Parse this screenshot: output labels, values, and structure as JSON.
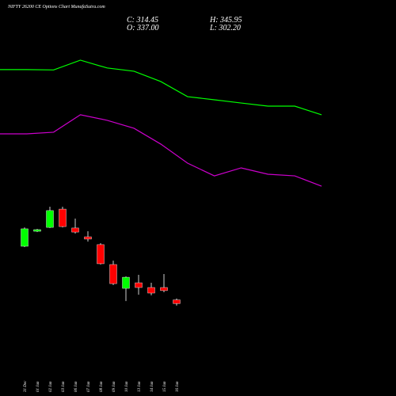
{
  "chart_data": {
    "type": "candlestick",
    "title": "NIFTY 26200  CE Options Chart MunafaSutra.com",
    "ohlc_labels": [
      "C: 314.45",
      "H: 345.95",
      "O: 337.00",
      "L: 302.20"
    ],
    "categories": [
      "31 Dec",
      "01 Jan",
      "02 Jan",
      "03 Jan",
      "06 Jan",
      "07 Jan",
      "08 Jan",
      "09 Jan",
      "10 Jan",
      "13 Jan",
      "14 Jan",
      "15 Jan",
      "16 Jan"
    ],
    "open": [
      666,
      758,
      782,
      894,
      778,
      724,
      676,
      554,
      408,
      442,
      413,
      413,
      337.0
    ],
    "high": [
      782,
      773,
      909,
      909,
      836,
      758,
      685,
      578,
      481,
      491,
      442,
      496,
      345.95
    ],
    "low": [
      661,
      753,
      778,
      782,
      744,
      695,
      554,
      428,
      330,
      369,
      365,
      384,
      302.2
    ],
    "close": [
      773,
      768,
      885,
      787,
      753,
      710,
      559,
      437,
      476,
      413,
      379,
      394,
      314.45
    ],
    "up_color": "#00ff00",
    "down_color": "#ff0000",
    "lines": [
      {
        "color": "#00ff00",
        "values": [
          1750,
          1750,
          1748,
          1808,
          1760,
          1740,
          1677,
          1584,
          1565,
          1545,
          1526,
          1526,
          1473
        ]
      },
      {
        "color": "#cc00cc",
        "values": [
          1356,
          1356,
          1366,
          1473,
          1439,
          1390,
          1293,
          1176,
          1098,
          1147,
          1108,
          1098,
          1035
        ]
      }
    ],
    "ylim": [
      0,
      2080
    ]
  }
}
